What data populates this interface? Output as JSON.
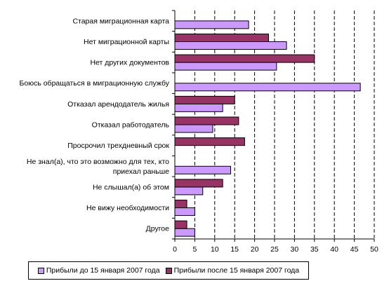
{
  "chart_data": {
    "type": "bar",
    "orientation": "horizontal",
    "categories": [
      [
        "Старая миграционная карта"
      ],
      [
        "Нет миграционной карты"
      ],
      [
        "Нет других документов"
      ],
      [
        "Боюсь обращаться в миграционную службу"
      ],
      [
        "Отказал арендодатель жилья"
      ],
      [
        "Отказал работодатель"
      ],
      [
        "Просрочил трехдневный срок"
      ],
      [
        "Не знал(а), что это возможно для тех, кто",
        "приехал раньше"
      ],
      [
        "Не слышал(а) об этом"
      ],
      [
        "Не вижу необходимости"
      ],
      [
        "Другое"
      ]
    ],
    "series": [
      {
        "name": "Прибыли до 15 января 2007 года",
        "color": "#cc99ff",
        "values": [
          18.5,
          28,
          25.5,
          46.5,
          12,
          9.5,
          null,
          14,
          7,
          5,
          5
        ]
      },
      {
        "name": "Прибыли после 15 января 2007 года",
        "color": "#993366",
        "values": [
          null,
          23.5,
          35,
          null,
          15,
          16,
          17.5,
          null,
          12,
          3,
          3
        ]
      }
    ],
    "xlim": [
      0,
      50
    ],
    "xticks": [
      0,
      5,
      10,
      15,
      20,
      25,
      30,
      35,
      40,
      45,
      50
    ],
    "grid": "vertical-dashed",
    "legend_position": "bottom"
  }
}
